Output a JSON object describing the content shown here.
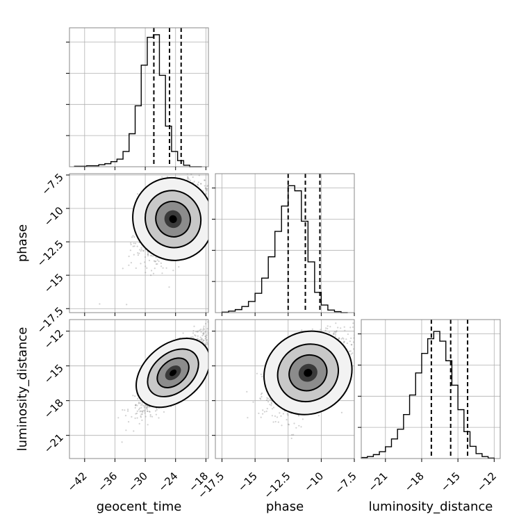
{
  "chart_data": [
    {
      "type": "histogram",
      "panel": "geocent_time",
      "x": {
        "label": "geocent_time",
        "range": [
          -45,
          -17.5
        ],
        "ticks": [
          -42,
          -36,
          -30,
          -24,
          -18
        ]
      },
      "bins": [
        -44.0,
        -42.8,
        -41.6,
        -40.4,
        -39.2,
        -38.0,
        -36.8,
        -35.6,
        -34.4,
        -33.2,
        -32.0,
        -30.8,
        -29.6,
        -28.4,
        -27.2,
        -26.0,
        -24.8,
        -23.6,
        -22.4,
        -21.2,
        -20.0,
        -18.8
      ],
      "counts": [
        1,
        1,
        2,
        2,
        4,
        6,
        10,
        15,
        30,
        65,
        120,
        200,
        255,
        260,
        180,
        80,
        30,
        12,
        3,
        0,
        0
      ],
      "y_max": 260,
      "quantile_lines": [
        -28.3,
        -25.2,
        -22.9
      ],
      "grid": true
    },
    {
      "type": "histogram",
      "panel": "phase",
      "x": {
        "label": "phase",
        "range": [
          -18,
          -7.5
        ],
        "ticks": [
          -17.5,
          -15.0,
          -12.5,
          -10.0,
          -7.5
        ]
      },
      "bins": [
        -17.5,
        -17.0,
        -16.5,
        -16.0,
        -15.5,
        -15.0,
        -14.5,
        -14.0,
        -13.5,
        -13.0,
        -12.5,
        -12.0,
        -11.5,
        -11.0,
        -10.5,
        -10.0,
        -9.5,
        -9.0,
        -8.5,
        -8.0
      ],
      "counts": [
        1,
        3,
        6,
        12,
        22,
        38,
        68,
        110,
        160,
        210,
        250,
        240,
        180,
        100,
        40,
        15,
        5,
        2,
        0
      ],
      "y_max": 260,
      "quantile_lines": [
        -12.5,
        -11.2,
        -10.1
      ],
      "grid": true
    },
    {
      "type": "histogram",
      "panel": "luminosity_distance",
      "x": {
        "label": "luminosity_distance",
        "range": [
          -23,
          -11.5
        ],
        "ticks": [
          -21,
          -18,
          -15,
          -12
        ]
      },
      "bins": [
        -23.0,
        -22.5,
        -22.0,
        -21.5,
        -21.0,
        -20.5,
        -20.0,
        -19.5,
        -19.0,
        -18.5,
        -18.0,
        -17.5,
        -17.0,
        -16.5,
        -16.0,
        -15.5,
        -15.0,
        -14.5,
        -14.0,
        -13.5,
        -13.0,
        -12.5,
        -12.0
      ],
      "counts": [
        2,
        4,
        8,
        14,
        24,
        40,
        60,
        90,
        130,
        175,
        215,
        245,
        260,
        240,
        200,
        150,
        100,
        55,
        25,
        10,
        4,
        1
      ],
      "y_max": 270,
      "quantile_lines": [
        -17.2,
        -15.6,
        -14.2
      ],
      "grid": true
    },
    {
      "type": "scatter",
      "panel": "geocent_time vs phase",
      "x": {
        "range": [
          -45,
          -17.5
        ],
        "ticks": [
          -42,
          -36,
          -30,
          -24,
          -18
        ]
      },
      "y": {
        "label": "phase",
        "range": [
          -17.8,
          -7.4
        ],
        "ticks": [
          -7.5,
          -10.0,
          -12.5,
          -15.0,
          -17.5
        ]
      },
      "center": [
        -24.5,
        -10.8
      ],
      "contour_levels": 3,
      "grid": true
    },
    {
      "type": "scatter",
      "panel": "geocent_time vs luminosity_distance",
      "x": {
        "label": "geocent_time",
        "range": [
          -45,
          -17.5
        ],
        "ticks": [
          -42,
          -36,
          -30,
          -24,
          -18
        ]
      },
      "y": {
        "label": "luminosity_distance",
        "range": [
          -23,
          -11
        ],
        "ticks": [
          -12,
          -15,
          -18,
          -21
        ]
      },
      "center": [
        -24.5,
        -15.6
      ],
      "contour_levels": 3,
      "grid": true
    },
    {
      "type": "scatter",
      "panel": "phase vs luminosity_distance",
      "x": {
        "label": "phase",
        "range": [
          -18,
          -7.5
        ],
        "ticks": [
          -17.5,
          -15.0,
          -12.5,
          -10.0,
          -7.5
        ]
      },
      "y": {
        "range": [
          -23,
          -11
        ],
        "ticks": [
          -12,
          -15,
          -18,
          -21
        ]
      },
      "center": [
        -11.0,
        -15.6
      ],
      "contour_levels": 3,
      "grid": true
    }
  ],
  "labels": {
    "x1": "geocent_time",
    "x2": "phase",
    "x3": "luminosity_distance",
    "y2": "phase",
    "y3": "luminosity_distance"
  }
}
